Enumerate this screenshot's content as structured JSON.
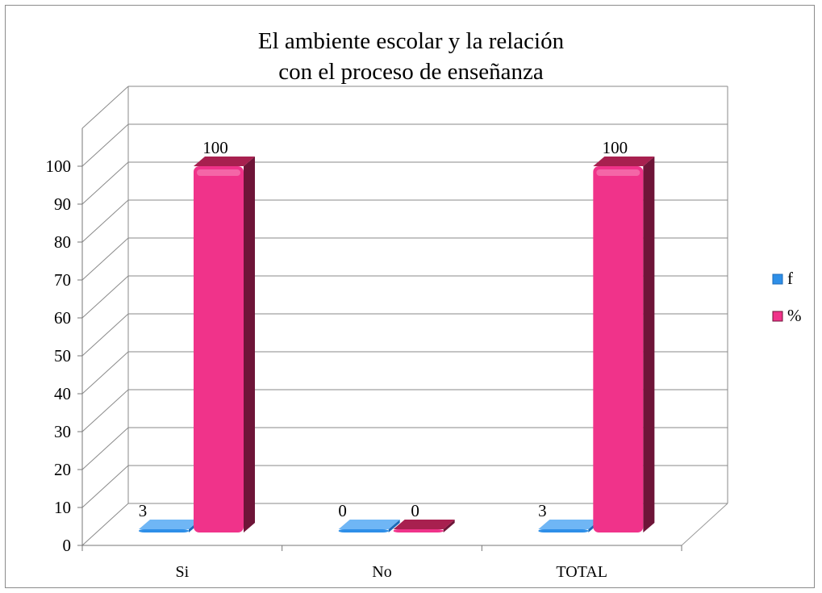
{
  "chart_data": {
    "type": "bar",
    "title_lines": [
      "El ambiente escolar y la relación",
      "con el proceso de enseñanza"
    ],
    "categories": [
      "Si",
      "No",
      "TOTAL"
    ],
    "series": [
      {
        "name": "f",
        "values": [
          3,
          0,
          3
        ],
        "color": "#2e8fe8",
        "side_color": "#1d6bb8",
        "top_color": "#6fb6f5"
      },
      {
        "name": "%",
        "values": [
          100,
          0,
          100
        ],
        "color": "#f0338a",
        "side_color": "#6e1538",
        "top_color": "#a8204f"
      }
    ],
    "data_labels": [
      [
        "3",
        "0",
        "3"
      ],
      [
        "100",
        "0",
        "100"
      ]
    ],
    "y_ticks": [
      0,
      10,
      20,
      30,
      40,
      50,
      60,
      70,
      80,
      90,
      100
    ],
    "ylim": [
      0,
      100
    ],
    "grid": true,
    "legend_position": "right",
    "three_d": true
  }
}
